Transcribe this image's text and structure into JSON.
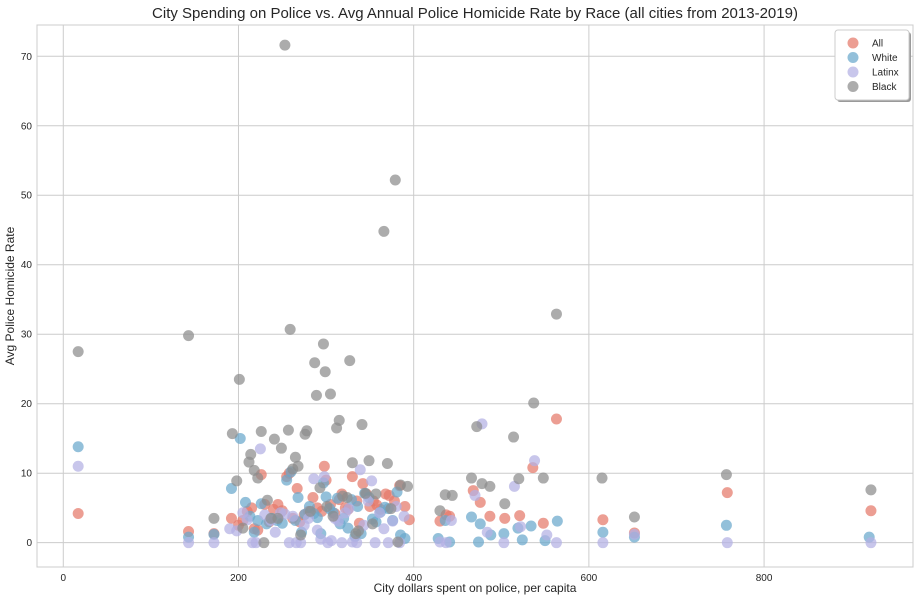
{
  "chart_data": {
    "type": "scatter",
    "title": "City Spending on Police vs. Avg Annual Police Homicide Rate by Race (all cities from 2013-2019)",
    "xlabel": "City dollars spent on police, per capita",
    "ylabel": "Avg Police Homicide Rate",
    "xlim": [
      -30,
      970
    ],
    "ylim": [
      -3.5,
      74.5
    ],
    "xticks": [
      0,
      200,
      400,
      600,
      800
    ],
    "yticks": [
      0,
      10,
      20,
      30,
      40,
      50,
      60,
      70
    ],
    "grid": true,
    "legend_position": "top-right",
    "colors": {
      "All": "#e5796a",
      "White": "#6aa8cc",
      "Latinx": "#b3b0e3",
      "Black": "#8c8c8c"
    },
    "series": [
      {
        "name": "All",
        "points": [
          [
            17,
            4.2
          ],
          [
            143,
            1.6
          ],
          [
            172,
            1.3
          ],
          [
            192,
            3.5
          ],
          [
            200,
            2.5
          ],
          [
            205,
            3.2
          ],
          [
            210,
            4.5
          ],
          [
            215,
            5
          ],
          [
            218,
            2
          ],
          [
            222,
            1.8
          ],
          [
            226,
            9.8
          ],
          [
            230,
            5.5
          ],
          [
            235,
            3
          ],
          [
            240,
            4.8
          ],
          [
            245,
            5.5
          ],
          [
            250,
            4.6
          ],
          [
            255,
            9.5
          ],
          [
            258,
            10
          ],
          [
            262,
            3.5
          ],
          [
            267,
            7.8
          ],
          [
            270,
            3
          ],
          [
            275,
            4
          ],
          [
            280,
            4.5
          ],
          [
            285,
            6.5
          ],
          [
            290,
            5
          ],
          [
            295,
            4.5
          ],
          [
            298,
            11
          ],
          [
            300,
            9
          ],
          [
            305,
            5.5
          ],
          [
            310,
            4.2
          ],
          [
            315,
            6.2
          ],
          [
            318,
            7
          ],
          [
            322,
            5
          ],
          [
            325,
            4.8
          ],
          [
            330,
            9.5
          ],
          [
            335,
            6
          ],
          [
            338,
            2.8
          ],
          [
            342,
            8.5
          ],
          [
            346,
            7
          ],
          [
            350,
            5.2
          ],
          [
            354,
            6
          ],
          [
            358,
            5.4
          ],
          [
            362,
            4.8
          ],
          [
            368,
            7
          ],
          [
            372,
            6.8
          ],
          [
            378,
            6
          ],
          [
            384,
            8.2
          ],
          [
            390,
            5.2
          ],
          [
            395,
            3.3
          ],
          [
            430,
            3.1
          ],
          [
            437,
            4
          ],
          [
            441,
            3.8
          ],
          [
            468,
            7.5
          ],
          [
            476,
            5.8
          ],
          [
            487,
            3.8
          ],
          [
            504,
            3.5
          ],
          [
            521,
            3.9
          ],
          [
            536,
            10.8
          ],
          [
            548,
            2.8
          ],
          [
            563,
            17.8
          ],
          [
            616,
            3.3
          ],
          [
            652,
            1.4
          ],
          [
            758,
            7.2
          ],
          [
            922,
            4.6
          ]
        ]
      },
      {
        "name": "White",
        "points": [
          [
            17,
            13.8
          ],
          [
            143,
            0.8
          ],
          [
            172,
            1.2
          ],
          [
            192,
            7.8
          ],
          [
            202,
            15
          ],
          [
            208,
            5.8
          ],
          [
            213,
            3.8
          ],
          [
            218,
            1.5
          ],
          [
            222,
            3.2
          ],
          [
            226,
            5.6
          ],
          [
            232,
            2.7
          ],
          [
            238,
            3.5
          ],
          [
            244,
            3.2
          ],
          [
            250,
            2.8
          ],
          [
            255,
            9
          ],
          [
            260,
            10.2
          ],
          [
            265,
            3.2
          ],
          [
            268,
            6.5
          ],
          [
            272,
            1.5
          ],
          [
            276,
            4.1
          ],
          [
            281,
            5.2
          ],
          [
            286,
            4.2
          ],
          [
            290,
            3.6
          ],
          [
            294,
            1.3
          ],
          [
            297,
            8.6
          ],
          [
            300,
            6.6
          ],
          [
            304,
            4.9
          ],
          [
            308,
            4.3
          ],
          [
            313,
            6.4
          ],
          [
            316,
            2.7
          ],
          [
            320,
            3.5
          ],
          [
            325,
            2.1
          ],
          [
            329,
            6.2
          ],
          [
            333,
            0.9
          ],
          [
            336,
            5.2
          ],
          [
            340,
            1.3
          ],
          [
            344,
            7.1
          ],
          [
            349,
            6.5
          ],
          [
            353,
            3.4
          ],
          [
            357,
            3
          ],
          [
            362,
            4.4
          ],
          [
            367,
            5.1
          ],
          [
            371,
            4.9
          ],
          [
            376,
            3.2
          ],
          [
            381,
            7.3
          ],
          [
            385,
            1.1
          ],
          [
            390,
            0.6
          ],
          [
            428,
            0.6
          ],
          [
            436,
            3.2
          ],
          [
            441,
            0.1
          ],
          [
            466,
            3.7
          ],
          [
            474,
            0.1
          ],
          [
            476,
            2.7
          ],
          [
            488,
            1.1
          ],
          [
            503,
            1.3
          ],
          [
            519,
            2.1
          ],
          [
            524,
            0.4
          ],
          [
            534,
            2.4
          ],
          [
            550,
            0.3
          ],
          [
            564,
            3.1
          ],
          [
            616,
            1.5
          ],
          [
            652,
            0.8
          ],
          [
            757,
            2.5
          ],
          [
            920,
            0.8
          ]
        ]
      },
      {
        "name": "Latinx",
        "points": [
          [
            17,
            11
          ],
          [
            143,
            0
          ],
          [
            172,
            0
          ],
          [
            190,
            2
          ],
          [
            198,
            1.7
          ],
          [
            205,
            4.3
          ],
          [
            210,
            3.3
          ],
          [
            216,
            0
          ],
          [
            220,
            0
          ],
          [
            225,
            13.5
          ],
          [
            230,
            4
          ],
          [
            237,
            3.2
          ],
          [
            242,
            1.5
          ],
          [
            248,
            4.3
          ],
          [
            253,
            4.1
          ],
          [
            258,
            0
          ],
          [
            262,
            3.8
          ],
          [
            266,
            0
          ],
          [
            271,
            0
          ],
          [
            275,
            2.5
          ],
          [
            280,
            3.5
          ],
          [
            286,
            9.2
          ],
          [
            290,
            1.8
          ],
          [
            294,
            0.5
          ],
          [
            298,
            9.5
          ],
          [
            302,
            0
          ],
          [
            306,
            0.3
          ],
          [
            310,
            3.5
          ],
          [
            314,
            3.1
          ],
          [
            318,
            0
          ],
          [
            322,
            4.3
          ],
          [
            326,
            4.9
          ],
          [
            330,
            0.1
          ],
          [
            335,
            0
          ],
          [
            339,
            10.5
          ],
          [
            343,
            2.5
          ],
          [
            348,
            6
          ],
          [
            352,
            8.9
          ],
          [
            356,
            0
          ],
          [
            361,
            4.3
          ],
          [
            366,
            2
          ],
          [
            371,
            0
          ],
          [
            376,
            3.1
          ],
          [
            380,
            5.2
          ],
          [
            384,
            0
          ],
          [
            389,
            3.8
          ],
          [
            430,
            0.1
          ],
          [
            437,
            0
          ],
          [
            443,
            3.2
          ],
          [
            470,
            6.8
          ],
          [
            478,
            17.1
          ],
          [
            484,
            1.5
          ],
          [
            503,
            0
          ],
          [
            515,
            8.1
          ],
          [
            522,
            2.3
          ],
          [
            538,
            11.8
          ],
          [
            552,
            1.1
          ],
          [
            563,
            0
          ],
          [
            616,
            0
          ],
          [
            652,
            1.2
          ],
          [
            758,
            0
          ],
          [
            922,
            0
          ]
        ]
      },
      {
        "name": "Black",
        "points": [
          [
            17,
            27.5
          ],
          [
            143,
            29.8
          ],
          [
            172,
            3.5
          ],
          [
            193,
            15.7
          ],
          [
            198,
            8.9
          ],
          [
            201,
            23.5
          ],
          [
            205,
            2.1
          ],
          [
            212,
            11.6
          ],
          [
            214,
            12.7
          ],
          [
            218,
            10.4
          ],
          [
            222,
            9.3
          ],
          [
            226,
            16
          ],
          [
            229,
            0
          ],
          [
            233,
            6.1
          ],
          [
            237,
            3.5
          ],
          [
            241,
            14.9
          ],
          [
            245,
            3.5
          ],
          [
            249,
            13.6
          ],
          [
            253,
            71.6
          ],
          [
            257,
            16.2
          ],
          [
            259,
            30.7
          ],
          [
            262,
            10.6
          ],
          [
            265,
            12.3
          ],
          [
            268,
            11
          ],
          [
            271,
            1.1
          ],
          [
            276,
            15.6
          ],
          [
            278,
            16.1
          ],
          [
            282,
            4.5
          ],
          [
            287,
            25.9
          ],
          [
            289,
            21.2
          ],
          [
            293,
            7.9
          ],
          [
            297,
            28.6
          ],
          [
            299,
            24.6
          ],
          [
            301,
            5.2
          ],
          [
            305,
            21.4
          ],
          [
            308,
            3.8
          ],
          [
            312,
            16.5
          ],
          [
            315,
            17.6
          ],
          [
            319,
            6.7
          ],
          [
            324,
            6.5
          ],
          [
            327,
            26.2
          ],
          [
            330,
            11.5
          ],
          [
            334,
            1.3
          ],
          [
            337,
            1.7
          ],
          [
            341,
            17
          ],
          [
            345,
            7.1
          ],
          [
            349,
            11.8
          ],
          [
            353,
            2.7
          ],
          [
            357,
            7
          ],
          [
            366,
            44.8
          ],
          [
            370,
            11.4
          ],
          [
            374,
            4.9
          ],
          [
            379,
            52.2
          ],
          [
            382,
            0.1
          ],
          [
            385,
            8.3
          ],
          [
            393,
            8.1
          ],
          [
            430,
            4.6
          ],
          [
            436,
            6.9
          ],
          [
            444,
            6.8
          ],
          [
            466,
            9.3
          ],
          [
            472,
            16.7
          ],
          [
            478,
            8.5
          ],
          [
            487,
            8.1
          ],
          [
            504,
            5.6
          ],
          [
            514,
            15.2
          ],
          [
            520,
            9.2
          ],
          [
            537,
            20.1
          ],
          [
            548,
            9.3
          ],
          [
            563,
            32.9
          ],
          [
            615,
            9.3
          ],
          [
            652,
            3.7
          ],
          [
            757,
            9.8
          ],
          [
            922,
            7.6
          ]
        ]
      }
    ]
  }
}
